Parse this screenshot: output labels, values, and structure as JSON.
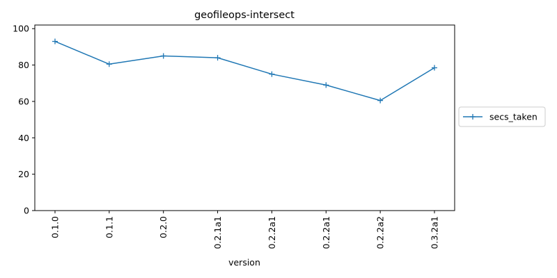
{
  "chart_data": {
    "type": "line",
    "title": "geofileops-intersect",
    "xlabel": "version",
    "ylabel": "",
    "categories": [
      "0.1.0",
      "0.1.1",
      "0.2.0",
      "0.2.1a1",
      "0.2.2a1",
      "0.2.2a1",
      "0.2.2a2",
      "0.3.2a1"
    ],
    "series": [
      {
        "name": "secs_taken",
        "values": [
          93,
          80.5,
          85,
          84,
          75,
          69,
          60.5,
          78.5
        ],
        "color": "#1f77b4",
        "marker": "+"
      }
    ],
    "ylim": [
      0,
      102
    ],
    "yticks": [
      0,
      20,
      40,
      60,
      80,
      100
    ],
    "grid": false,
    "legend_position": "outside-right"
  }
}
